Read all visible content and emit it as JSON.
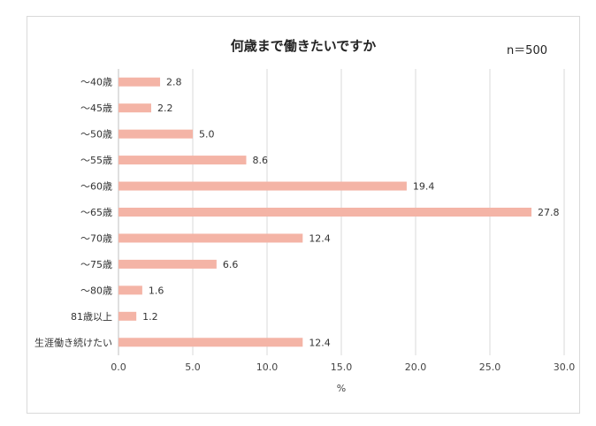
{
  "chart_data": {
    "type": "bar",
    "orientation": "horizontal",
    "title": "何歳まで働きたいですか",
    "sample_size": "n＝500",
    "categories": [
      "～40歳",
      "～45歳",
      "～50歳",
      "～55歳",
      "～60歳",
      "～65歳",
      "～70歳",
      "～75歳",
      "～80歳",
      "81歳以上",
      "生涯働き続けたい"
    ],
    "values": [
      2.8,
      2.2,
      5.0,
      8.6,
      19.4,
      27.8,
      12.4,
      6.6,
      1.6,
      1.2,
      12.4
    ],
    "value_labels": [
      "2.8",
      "2.2",
      "5.0",
      "8.6",
      "19.4",
      "27.8",
      "12.4",
      "6.6",
      "1.6",
      "1.2",
      "12.4"
    ],
    "xlabel": "%",
    "ylabel": "",
    "xlim": [
      0,
      30
    ],
    "ticks": [
      0,
      5,
      10,
      15,
      20,
      25,
      30
    ],
    "tick_labels": [
      "0.0",
      "5.0",
      "10.0",
      "15.0",
      "20.0",
      "25.0",
      "30.0"
    ],
    "grid": true,
    "bar_color": "#f4b4a6",
    "grid_color": "#d9d9d9"
  }
}
